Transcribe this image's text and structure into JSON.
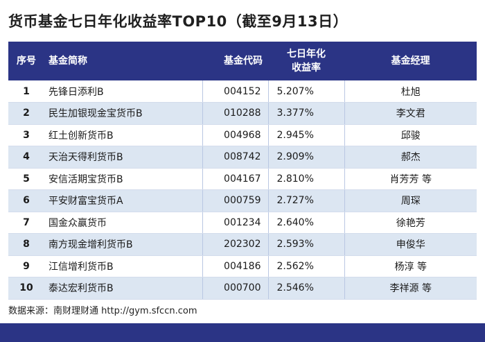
{
  "title": "货币基金七日年化收益率TOP10（截至9月13日）",
  "headers": {
    "rank": "序号",
    "name": "基金简称",
    "code": "基金代码",
    "yield": "七日年化\n收益率",
    "manager": "基金经理"
  },
  "rows": [
    {
      "rank": "1",
      "name": "先锋日添利B",
      "code": "004152",
      "yield": "5.207%",
      "manager": "杜旭"
    },
    {
      "rank": "2",
      "name": "民生加银现金宝货币B",
      "code": "010288",
      "yield": "3.377%",
      "manager": "李文君"
    },
    {
      "rank": "3",
      "name": "红土创新货币B",
      "code": "004968",
      "yield": "2.945%",
      "manager": "邱骏"
    },
    {
      "rank": "4",
      "name": "天治天得利货币B",
      "code": "008742",
      "yield": "2.909%",
      "manager": "郝杰"
    },
    {
      "rank": "5",
      "name": "安信活期宝货币B",
      "code": "004167",
      "yield": "2.810%",
      "manager": "肖芳芳 等"
    },
    {
      "rank": "6",
      "name": "平安财富宝货币A",
      "code": "000759",
      "yield": "2.727%",
      "manager": "周琛"
    },
    {
      "rank": "7",
      "name": "国金众赢货币",
      "code": "001234",
      "yield": "2.640%",
      "manager": "徐艳芳"
    },
    {
      "rank": "8",
      "name": "南方现金增利货币B",
      "code": "202302",
      "yield": "2.593%",
      "manager": "申俊华"
    },
    {
      "rank": "9",
      "name": "江信增利货币B",
      "code": "004186",
      "yield": "2.562%",
      "manager": "杨淳 等"
    },
    {
      "rank": "10",
      "name": "泰达宏利货币B",
      "code": "000700",
      "yield": "2.546%",
      "manager": "李祥源 等"
    }
  ],
  "source": "数据来源：南财理财通 http://gym.sfccn.com",
  "colors": {
    "header_bg": "#2b3485",
    "stripe": "#dce6f2"
  }
}
